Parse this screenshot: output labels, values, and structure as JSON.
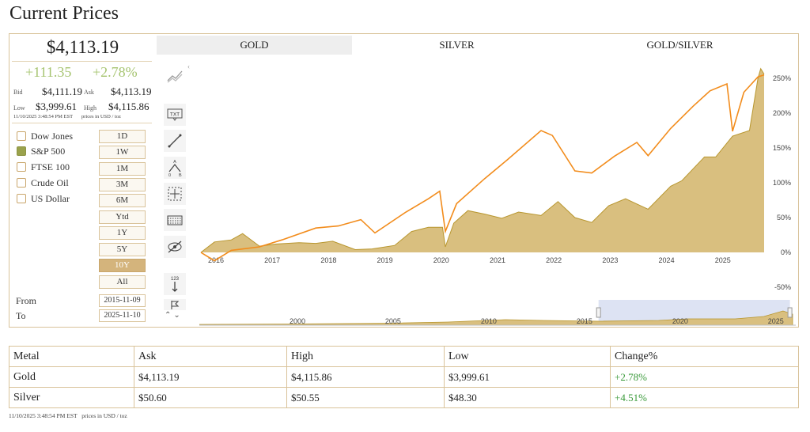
{
  "page_title": "Current Prices",
  "quote": {
    "price": "$4,113.19",
    "change_abs": "+111.35",
    "change_pct": "+2.78%",
    "bid_label": "Bid",
    "bid": "$4,111.19",
    "ask_label": "Ask",
    "ask": "$4,113.19",
    "low_label": "Low",
    "low": "$3,999.61",
    "high_label": "High",
    "high": "$4,115.86",
    "timestamp": "11/10/2025 3:48:54 PM EST",
    "units": "prices in USD / toz"
  },
  "compare": [
    {
      "label": "Dow Jones",
      "checked": false
    },
    {
      "label": "S&P 500",
      "checked": true
    },
    {
      "label": "FTSE 100",
      "checked": false
    },
    {
      "label": "Crude Oil",
      "checked": false
    },
    {
      "label": "US Dollar",
      "checked": false
    }
  ],
  "ranges": [
    "1D",
    "1W",
    "1M",
    "3M",
    "6M",
    "Ytd",
    "1Y",
    "5Y",
    "10Y",
    "All"
  ],
  "active_range": "10Y",
  "date_range": {
    "from_label": "From",
    "from": "2015-11-09",
    "to_label": "To",
    "to": "2025-11-10"
  },
  "tabs": [
    "GOLD",
    "SILVER",
    "GOLD/SILVER"
  ],
  "active_tab": "GOLD",
  "tools": [
    "indicators-icon",
    "text-annotation-icon",
    "trend-line-icon",
    "fibonacci-icon",
    "crosshair-icon",
    "measure-icon",
    "hide-drawings-icon",
    "scale-123-icon",
    "flag-icon"
  ],
  "tool_labels": {
    "text": "TXT",
    "scale": "123"
  },
  "colors": {
    "gold_area": "#d9bf7f",
    "gold_line": "#b8962e",
    "sp500_line": "#f28c1c",
    "accent_border": "#d9c39a",
    "positive": "#3a9a3a",
    "change_green": "#a6c470"
  },
  "chart_data": {
    "type": "area",
    "x_unit": "year",
    "x_ticks": [
      "2016",
      "2017",
      "2018",
      "2019",
      "2020",
      "2021",
      "2022",
      "2023",
      "2024",
      "2025"
    ],
    "y_ticks": [
      "250%",
      "200%",
      "150%",
      "100%",
      "50%",
      "0%",
      "-50%"
    ],
    "ylim": [
      -50,
      275
    ],
    "xlim": [
      2015.86,
      2025.86
    ],
    "series": [
      {
        "name": "GOLD",
        "type": "area",
        "x": [
          2015.86,
          2016.1,
          2016.4,
          2016.6,
          2016.9,
          2017.2,
          2017.6,
          2017.9,
          2018.2,
          2018.6,
          2018.9,
          2019.3,
          2019.6,
          2019.9,
          2020.15,
          2020.2,
          2020.35,
          2020.6,
          2020.9,
          2021.2,
          2021.5,
          2021.9,
          2022.2,
          2022.5,
          2022.8,
          2023.1,
          2023.4,
          2023.8,
          2024.2,
          2024.4,
          2024.8,
          2025.0,
          2025.3,
          2025.6,
          2025.75,
          2025.8,
          2025.86
        ],
        "y": [
          0,
          15,
          18,
          27,
          9,
          12,
          14,
          13,
          16,
          4,
          5,
          10,
          30,
          36,
          36,
          8,
          42,
          60,
          55,
          49,
          58,
          53,
          73,
          50,
          43,
          67,
          77,
          62,
          95,
          103,
          137,
          137,
          167,
          175,
          250,
          264,
          256
        ]
      },
      {
        "name": "S&P 500",
        "type": "line",
        "x": [
          2015.86,
          2016.1,
          2016.4,
          2016.9,
          2017.3,
          2017.9,
          2018.3,
          2018.7,
          2018.95,
          2019.5,
          2019.9,
          2020.1,
          2020.2,
          2020.4,
          2020.9,
          2021.3,
          2021.9,
          2022.1,
          2022.5,
          2022.8,
          2023.2,
          2023.6,
          2023.8,
          2024.2,
          2024.6,
          2024.9,
          2025.2,
          2025.3,
          2025.5,
          2025.75,
          2025.86
        ],
        "y": [
          0,
          -12,
          3,
          8,
          18,
          35,
          38,
          47,
          28,
          58,
          77,
          88,
          30,
          70,
          106,
          133,
          175,
          168,
          117,
          114,
          138,
          158,
          139,
          178,
          210,
          232,
          242,
          174,
          230,
          252,
          255
        ]
      }
    ],
    "navigator": {
      "x_ticks": [
        "2000",
        "2005",
        "2010",
        "2015",
        "2020",
        "2025"
      ],
      "selected_range": [
        "2015-11-09",
        "2025-11-10"
      ]
    }
  },
  "table": {
    "headers": [
      "Metal",
      "Ask",
      "High",
      "Low",
      "Change%"
    ],
    "rows": [
      [
        "Gold",
        "$4,113.19",
        "$4,115.86",
        "$3,999.61",
        "+2.78%"
      ],
      [
        "Silver",
        "$50.60",
        "$50.55",
        "$48.30",
        "+4.51%"
      ]
    ],
    "timestamp": "11/10/2025 3:48:54 PM EST",
    "units": "prices in USD / toz"
  }
}
